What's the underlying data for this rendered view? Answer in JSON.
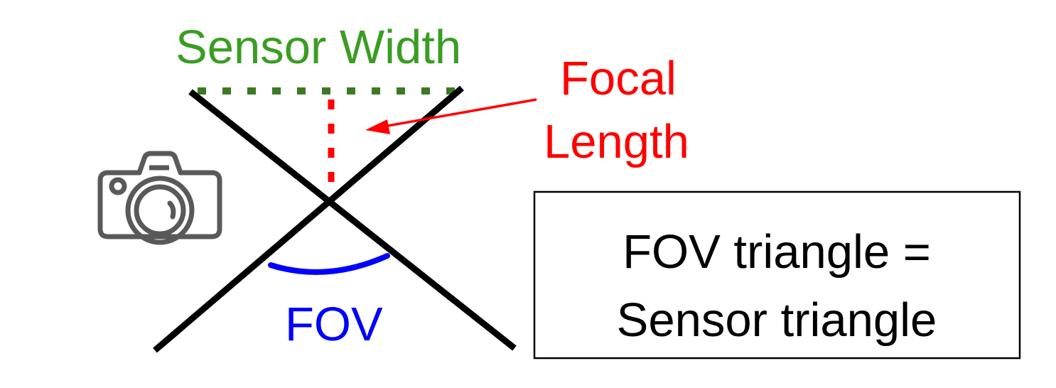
{
  "labels": {
    "sensor_width": "Sensor Width",
    "focal_line1": "Focal",
    "focal_line2": "Length",
    "fov": "FOV",
    "equation_line1": "FOV triangle =",
    "equation_line2": "Sensor triangle"
  },
  "colors": {
    "sensor_width": "#3a9d23",
    "sensor_dots": "#3b7a22",
    "focal": "#ff0000",
    "fov": "#0000ff",
    "lines": "#000000",
    "camera": "#595959",
    "box_border": "#000000"
  },
  "icons": {
    "camera": "camera-icon"
  }
}
